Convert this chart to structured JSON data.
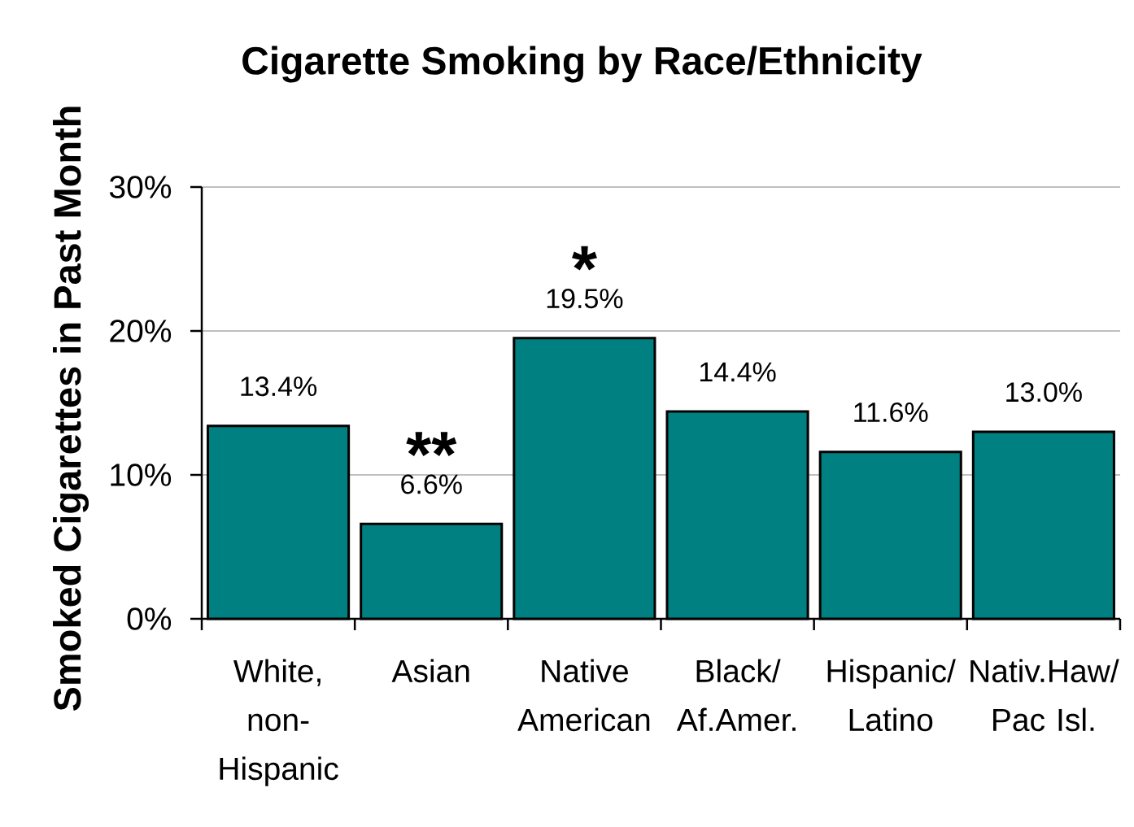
{
  "chart_data": {
    "type": "bar",
    "title": "Cigarette Smoking by Race/Ethnicity",
    "ylabel": "Smoked Cigarettes in Past Month",
    "categories": [
      "White, non-Hispanic",
      "Asian",
      "Native American",
      "Black/ Af.Amer.",
      "Hispanic/ Latino",
      "Nativ.Haw/ Pac Isl."
    ],
    "values": [
      13.4,
      6.6,
      19.5,
      14.4,
      11.6,
      13.0
    ],
    "value_labels": [
      "13.4%",
      "6.6%",
      "19.5%",
      "14.4%",
      "11.6%",
      "13.0%"
    ],
    "color": "#008080",
    "ylim": [
      0,
      30
    ],
    "yticks": [
      {
        "value": 0,
        "label": "0%"
      },
      {
        "value": 10,
        "label": "10%"
      },
      {
        "value": 20,
        "label": "20%"
      },
      {
        "value": 30,
        "label": "30%"
      }
    ],
    "grid": "y",
    "annotations": [
      "**",
      "*"
    ]
  }
}
